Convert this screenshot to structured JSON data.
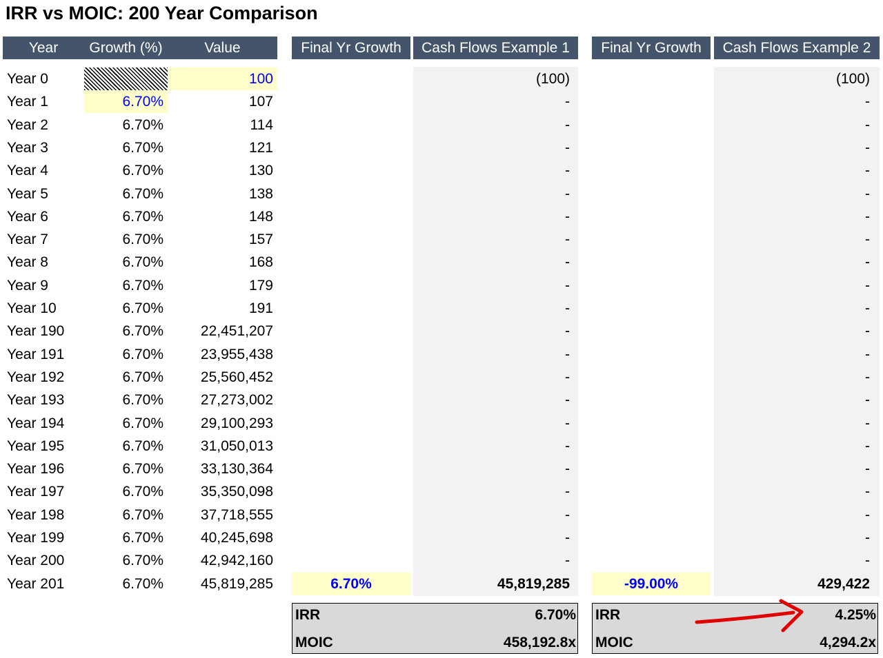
{
  "title": "IRR vs MOIC: 200 Year Comparison",
  "headers": [
    "Year",
    "Growth (%)",
    "Value",
    "Final Yr Growth",
    "Cash Flows Example 1",
    "Final Yr Growth",
    "Cash Flows Example 2"
  ],
  "rows": [
    [
      "Year 0",
      null,
      "100",
      null,
      "(100)",
      null,
      "(100)"
    ],
    [
      "Year 1",
      "6.70%",
      "107",
      null,
      "-",
      null,
      "-"
    ],
    [
      "Year 2",
      "6.70%",
      "114",
      null,
      "-",
      null,
      "-"
    ],
    [
      "Year 3",
      "6.70%",
      "121",
      null,
      "-",
      null,
      "-"
    ],
    [
      "Year 4",
      "6.70%",
      "130",
      null,
      "-",
      null,
      "-"
    ],
    [
      "Year 5",
      "6.70%",
      "138",
      null,
      "-",
      null,
      "-"
    ],
    [
      "Year 6",
      "6.70%",
      "148",
      null,
      "-",
      null,
      "-"
    ],
    [
      "Year 7",
      "6.70%",
      "157",
      null,
      "-",
      null,
      "-"
    ],
    [
      "Year 8",
      "6.70%",
      "168",
      null,
      "-",
      null,
      "-"
    ],
    [
      "Year 9",
      "6.70%",
      "179",
      null,
      "-",
      null,
      "-"
    ],
    [
      "Year 10",
      "6.70%",
      "191",
      null,
      "-",
      null,
      "-"
    ],
    [
      "Year 190",
      "6.70%",
      "22,451,207",
      null,
      "-",
      null,
      "-"
    ],
    [
      "Year 191",
      "6.70%",
      "23,955,438",
      null,
      "-",
      null,
      "-"
    ],
    [
      "Year 192",
      "6.70%",
      "25,560,452",
      null,
      "-",
      null,
      "-"
    ],
    [
      "Year 193",
      "6.70%",
      "27,273,002",
      null,
      "-",
      null,
      "-"
    ],
    [
      "Year 194",
      "6.70%",
      "29,100,293",
      null,
      "-",
      null,
      "-"
    ],
    [
      "Year 195",
      "6.70%",
      "31,050,013",
      null,
      "-",
      null,
      "-"
    ],
    [
      "Year 196",
      "6.70%",
      "33,130,364",
      null,
      "-",
      null,
      "-"
    ],
    [
      "Year 197",
      "6.70%",
      "35,350,098",
      null,
      "-",
      null,
      "-"
    ],
    [
      "Year 198",
      "6.70%",
      "37,718,555",
      null,
      "-",
      null,
      "-"
    ],
    [
      "Year 199",
      "6.70%",
      "40,245,698",
      null,
      "-",
      null,
      "-"
    ],
    [
      "Year 200",
      "6.70%",
      "42,942,160",
      null,
      "-",
      null,
      "-"
    ],
    [
      "Year 201",
      "6.70%",
      "45,819,285",
      "6.70%",
      "45,819,285",
      "-99.00%",
      "429,422"
    ]
  ],
  "summary1": [
    [
      "IRR",
      "6.70%"
    ],
    [
      "MOIC",
      "458,192.8x"
    ]
  ],
  "summary2": [
    [
      "IRR",
      "4.25%"
    ],
    [
      "MOIC",
      "4,294.2x"
    ]
  ]
}
